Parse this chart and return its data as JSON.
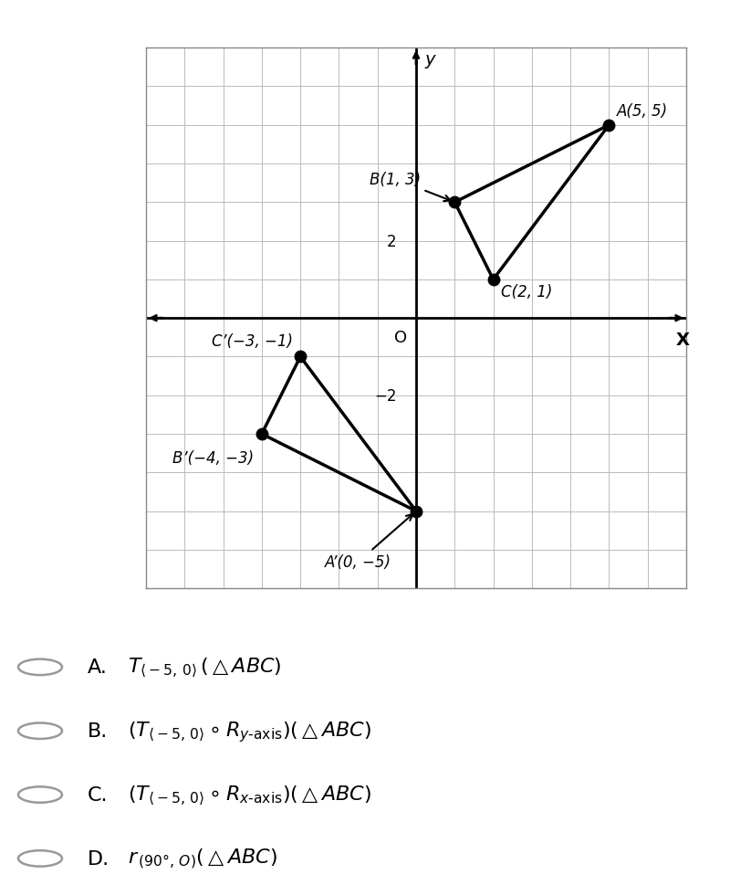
{
  "triangle_ABC": {
    "A": [
      5,
      5
    ],
    "B": [
      1,
      3
    ],
    "C": [
      2,
      1
    ]
  },
  "triangle_A1B1C1": {
    "A1": [
      0,
      -5
    ],
    "B1": [
      -4,
      -3
    ],
    "C1": [
      -3,
      -1
    ]
  },
  "grid_xlim": [
    -7,
    7
  ],
  "grid_ylim": [
    -7,
    7
  ],
  "grid_color": "#bbbbbb",
  "triangle_color": "#000000",
  "dot_color": "#000000",
  "dot_size": 9,
  "line_width": 2.5,
  "bg_color": "#ffffff",
  "font_color": "#000000",
  "axis_tick_values": [
    2,
    -2
  ],
  "circle_color": "#aaaaaa"
}
